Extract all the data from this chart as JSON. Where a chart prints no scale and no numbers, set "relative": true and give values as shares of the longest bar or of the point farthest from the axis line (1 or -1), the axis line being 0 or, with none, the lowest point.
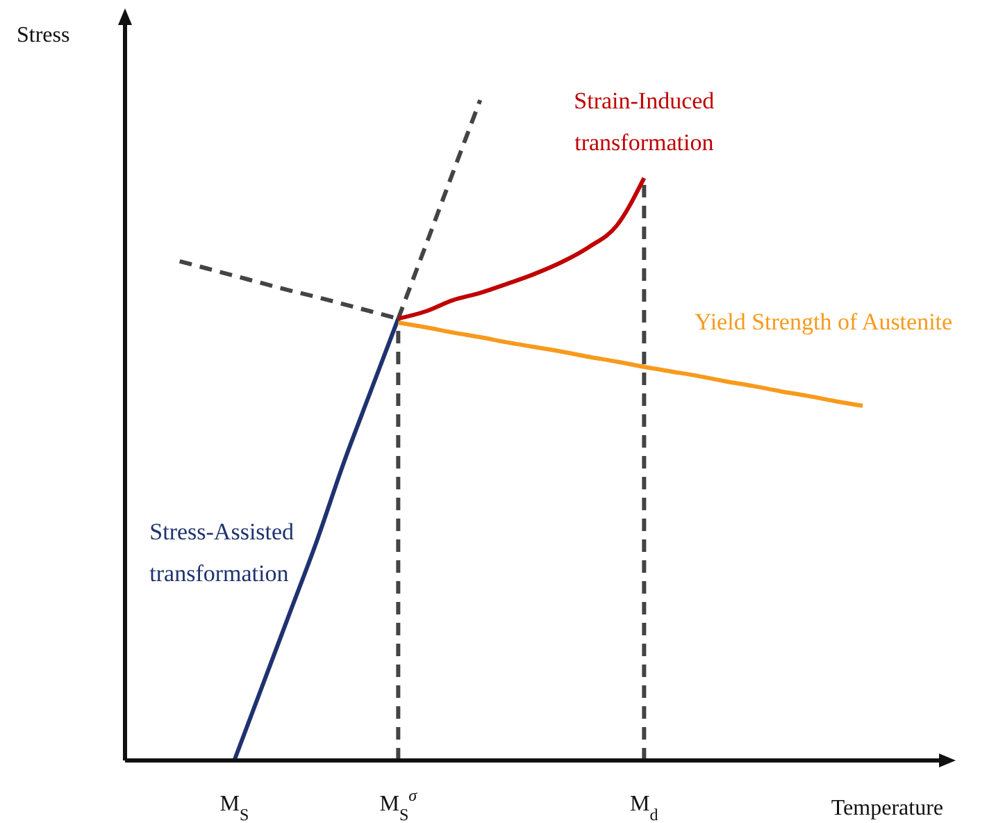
{
  "chart_data": {
    "type": "line",
    "relative": true,
    "xlabel": "Temperature",
    "ylabel": "Stress",
    "tick_labels": "x",
    "marker": "none",
    "categories": [
      null,
      null,
      null,
      null,
      "M$_{S}$",
      null,
      null,
      null,
      null,
      null,
      "M$_{S}$$^{σ}$",
      null,
      null,
      null,
      null,
      null,
      null,
      null,
      null,
      "M$_{d}$",
      null,
      null,
      null,
      null,
      null,
      null,
      null,
      null,
      null,
      null,
      null
    ],
    "ref_lines": [
      {
        "axis": "x",
        "value": "M$_{S}$$^{σ}$",
        "color": "#444444",
        "line_style": "dashed"
      },
      {
        "axis": "x",
        "value": "M$_{d}$",
        "color": "#444444",
        "line_style": "dashed"
      }
    ],
    "series": [
      {
        "name": "Stress-Assisted transformation",
        "color": "#1f3270",
        "line_style": "solid",
        "values": [
          null,
          null,
          null,
          null,
          0,
          0.11,
          0.22,
          0.33,
          0.45,
          0.56,
          0.669,
          null,
          null,
          null,
          null,
          null,
          null,
          null,
          null,
          null,
          null,
          null,
          null,
          null,
          null,
          null,
          null,
          null,
          null,
          null,
          null
        ]
      },
      {
        "color": "#444444",
        "line_style": "dashed",
        "values": [
          null,
          null,
          null,
          null,
          null,
          null,
          null,
          null,
          null,
          null,
          0.669,
          0.779,
          0.89,
          1,
          null,
          null,
          null,
          null,
          null,
          null,
          null,
          null,
          null,
          null,
          null,
          null,
          null,
          null,
          null,
          null,
          null
        ]
      },
      {
        "color": "#444444",
        "line_style": "dashed",
        "values": [
          null,
          null,
          0.756,
          0.745,
          0.734,
          0.723,
          0.712,
          0.702,
          0.691,
          0.68,
          0.669,
          null,
          null,
          null,
          null,
          null,
          null,
          null,
          null,
          null,
          null,
          null,
          null,
          null,
          null,
          null,
          null,
          null,
          null,
          null,
          null
        ]
      },
      {
        "name": "Yield Strength of Austenite",
        "color": "#f79a1c",
        "line_style": "solid",
        "values": [
          null,
          null,
          null,
          null,
          null,
          null,
          null,
          null,
          null,
          null,
          0.663,
          0.656,
          0.648,
          0.641,
          0.633,
          0.626,
          0.619,
          0.611,
          0.604,
          0.596,
          0.589,
          0.582,
          0.574,
          0.567,
          0.559,
          0.552,
          0.544,
          0.537,
          null,
          null,
          null
        ]
      },
      {
        "name": "Strain-Induced transformation",
        "color": "#c00000",
        "line_style": "solid",
        "values": [
          null,
          null,
          null,
          null,
          null,
          null,
          null,
          null,
          null,
          null,
          0.669,
          0.68,
          0.697,
          0.708,
          0.722,
          0.737,
          0.755,
          0.778,
          0.81,
          0.882,
          null,
          null,
          null,
          null,
          null,
          null,
          null,
          null,
          null,
          null,
          null
        ]
      }
    ]
  }
}
